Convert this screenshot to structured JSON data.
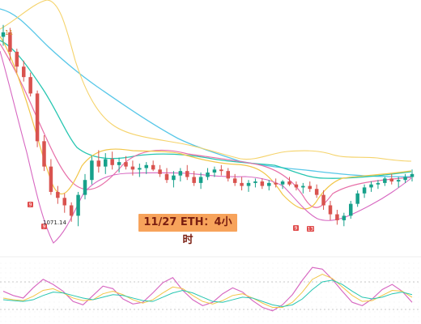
{
  "title": "11/27 ETH：4小时",
  "low_label": "1071.14",
  "markers": [
    "9",
    "9",
    "9",
    "13"
  ],
  "colors": {
    "up": "#17a18b",
    "down": "#d9534f",
    "ma_fast": "#f2c648",
    "ma_mid": "#e76fa8",
    "ma_slow": "#27c6b1",
    "ma_blue": "#57c7e8",
    "band_upper": "#f5d36b",
    "band_lower": "#d767c1",
    "sub_line_1": "#d767c1",
    "sub_line_2": "#f2c648",
    "sub_line_3": "#27c6b1"
  },
  "chart_data": {
    "type": "candlestick",
    "ohlc": [
      [
        1198,
        1206,
        1192,
        1201
      ],
      [
        1201,
        1204,
        1182,
        1188
      ],
      [
        1188,
        1190,
        1174,
        1178
      ],
      [
        1178,
        1182,
        1168,
        1171
      ],
      [
        1171,
        1174,
        1158,
        1160
      ],
      [
        1160,
        1162,
        1124,
        1128
      ],
      [
        1128,
        1132,
        1108,
        1111
      ],
      [
        1111,
        1116,
        1092,
        1094
      ],
      [
        1094,
        1098,
        1086,
        1090
      ],
      [
        1090,
        1093,
        1080,
        1085
      ],
      [
        1085,
        1087,
        1074,
        1078
      ],
      [
        1078,
        1094,
        1071,
        1092
      ],
      [
        1092,
        1106,
        1089,
        1102
      ],
      [
        1102,
        1118,
        1099,
        1115
      ],
      [
        1115,
        1122,
        1107,
        1111
      ],
      [
        1111,
        1120,
        1106,
        1116
      ],
      [
        1116,
        1121,
        1109,
        1112
      ],
      [
        1112,
        1117,
        1107,
        1114
      ],
      [
        1114,
        1118,
        1109,
        1111
      ],
      [
        1111,
        1115,
        1105,
        1109
      ],
      [
        1109,
        1113,
        1104,
        1110
      ],
      [
        1110,
        1114,
        1106,
        1112
      ],
      [
        1112,
        1115,
        1108,
        1109
      ],
      [
        1109,
        1112,
        1104,
        1106
      ],
      [
        1106,
        1110,
        1100,
        1102
      ],
      [
        1102,
        1108,
        1097,
        1105
      ],
      [
        1105,
        1110,
        1101,
        1108
      ],
      [
        1108,
        1112,
        1102,
        1104
      ],
      [
        1104,
        1108,
        1098,
        1100
      ],
      [
        1100,
        1107,
        1096,
        1104
      ],
      [
        1104,
        1110,
        1102,
        1107
      ],
      [
        1107,
        1111,
        1104,
        1109
      ],
      [
        1109,
        1112,
        1105,
        1108
      ],
      [
        1108,
        1110,
        1101,
        1103
      ],
      [
        1103,
        1106,
        1098,
        1100
      ],
      [
        1100,
        1104,
        1095,
        1098
      ],
      [
        1098,
        1102,
        1094,
        1100
      ],
      [
        1100,
        1103,
        1097,
        1101
      ],
      [
        1101,
        1103,
        1096,
        1098
      ],
      [
        1098,
        1102,
        1095,
        1100
      ],
      [
        1100,
        1103,
        1097,
        1099
      ],
      [
        1099,
        1102,
        1096,
        1101
      ],
      [
        1101,
        1104,
        1098,
        1099
      ],
      [
        1099,
        1101,
        1095,
        1097
      ],
      [
        1097,
        1100,
        1093,
        1098
      ],
      [
        1098,
        1101,
        1094,
        1096
      ],
      [
        1096,
        1099,
        1090,
        1092
      ],
      [
        1092,
        1095,
        1082,
        1085
      ],
      [
        1085,
        1088,
        1075,
        1079
      ],
      [
        1079,
        1082,
        1072,
        1075
      ],
      [
        1075,
        1080,
        1071,
        1078
      ],
      [
        1078,
        1088,
        1076,
        1086
      ],
      [
        1086,
        1095,
        1084,
        1093
      ],
      [
        1093,
        1099,
        1090,
        1097
      ],
      [
        1097,
        1101,
        1094,
        1099
      ],
      [
        1099,
        1102,
        1096,
        1100
      ],
      [
        1100,
        1104,
        1098,
        1103
      ],
      [
        1103,
        1106,
        1099,
        1101
      ],
      [
        1101,
        1104,
        1097,
        1102
      ],
      [
        1102,
        1106,
        1100,
        1104
      ],
      [
        1104,
        1109,
        1101,
        1106
      ]
    ]
  },
  "oscillator_data": {
    "series": [
      [
        44,
        39,
        36,
        48,
        58,
        52,
        44,
        32,
        28,
        39,
        50,
        47,
        35,
        29,
        31,
        42,
        54,
        60,
        45,
        34,
        27,
        31,
        41,
        48,
        43,
        33,
        25,
        21,
        28,
        40,
        57,
        72,
        70,
        58,
        44,
        31,
        27,
        35,
        46,
        52,
        44,
        31
      ],
      [
        36,
        34,
        33,
        38,
        45,
        47,
        42,
        36,
        33,
        34,
        41,
        44,
        40,
        34,
        30,
        34,
        42,
        49,
        47,
        39,
        32,
        29,
        33,
        39,
        41,
        36,
        30,
        25,
        25,
        31,
        43,
        58,
        64,
        59,
        49,
        39,
        32,
        33,
        39,
        45,
        44,
        37
      ],
      [
        34,
        33,
        32,
        34,
        39,
        43,
        42,
        39,
        36,
        34,
        37,
        40,
        39,
        36,
        33,
        32,
        37,
        42,
        45,
        42,
        37,
        32,
        31,
        34,
        37,
        36,
        32,
        28,
        26,
        28,
        35,
        46,
        55,
        57,
        52,
        44,
        37,
        35,
        37,
        41,
        43,
        40
      ]
    ]
  }
}
